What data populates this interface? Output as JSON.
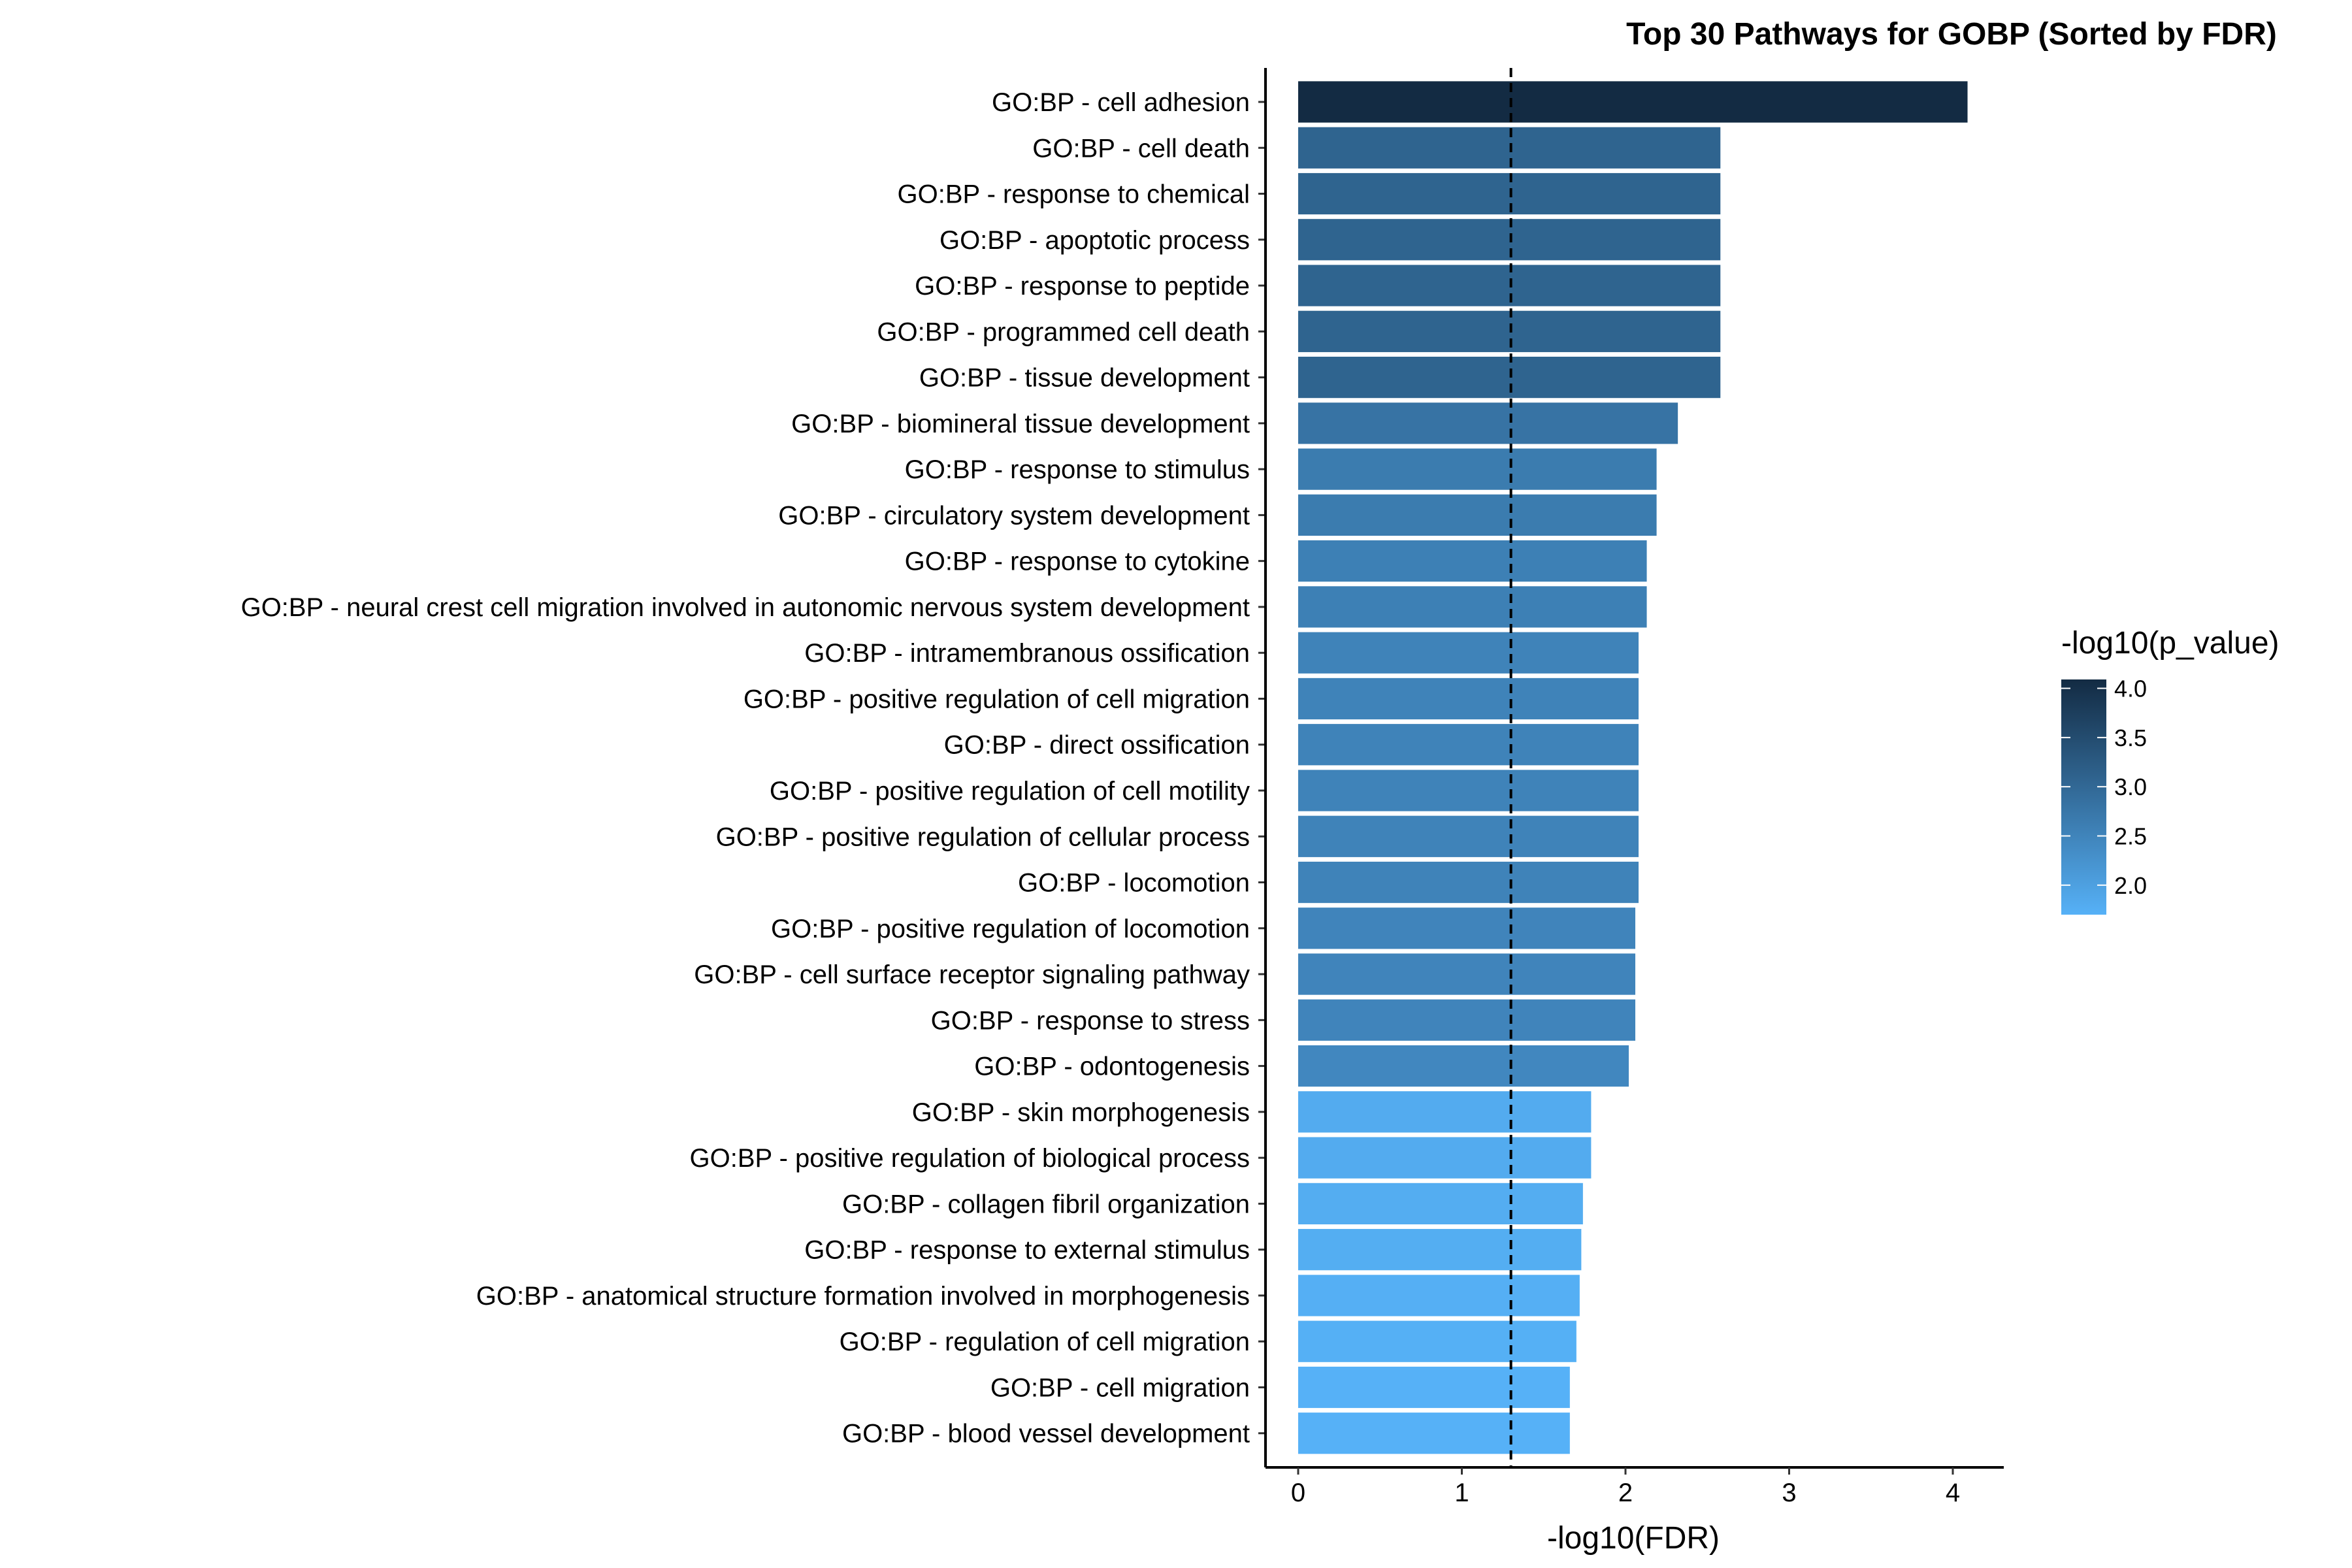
{
  "chart_data": {
    "type": "bar",
    "orientation": "horizontal",
    "title": "Top 30 Pathways for GOBP (Sorted by FDR)",
    "xlabel": "-log10(FDR)",
    "ylabel": "",
    "xlim": [
      -0.2,
      4.3
    ],
    "x_ticks": [
      0,
      1,
      2,
      3,
      4
    ],
    "reference_line": {
      "x": 1.3,
      "style": "dashed"
    },
    "grid": false,
    "categories": [
      "GO:BP - cell adhesion",
      "GO:BP - cell death",
      "GO:BP - response to chemical",
      "GO:BP - apoptotic process",
      "GO:BP - response to peptide",
      "GO:BP - programmed cell death",
      "GO:BP - tissue development",
      "GO:BP - biomineral tissue development",
      "GO:BP - response to stimulus",
      "GO:BP - circulatory system development",
      "GO:BP - response to cytokine",
      "GO:BP - neural crest cell migration involved in autonomic nervous system development",
      "GO:BP - intramembranous ossification",
      "GO:BP - positive regulation of cell migration",
      "GO:BP - direct ossification",
      "GO:BP - positive regulation of cell motility",
      "GO:BP - positive regulation of cellular process",
      "GO:BP - locomotion",
      "GO:BP - positive regulation of locomotion",
      "GO:BP - cell surface receptor signaling pathway",
      "GO:BP - response to stress",
      "GO:BP - odontogenesis",
      "GO:BP - skin morphogenesis",
      "GO:BP - positive regulation of biological process",
      "GO:BP - collagen fibril organization",
      "GO:BP - response to external stimulus",
      "GO:BP - anatomical structure formation involved in morphogenesis",
      "GO:BP - regulation of cell migration",
      "GO:BP - cell migration",
      "GO:BP - blood vessel development"
    ],
    "values": [
      4.09,
      2.58,
      2.58,
      2.58,
      2.58,
      2.58,
      2.58,
      2.32,
      2.19,
      2.19,
      2.13,
      2.13,
      2.08,
      2.08,
      2.08,
      2.08,
      2.08,
      2.08,
      2.06,
      2.06,
      2.06,
      2.02,
      1.79,
      1.79,
      1.74,
      1.73,
      1.72,
      1.7,
      1.66,
      1.66
    ],
    "color_values": [
      4.09,
      3.08,
      3.08,
      3.08,
      3.08,
      3.08,
      3.08,
      2.8,
      2.65,
      2.65,
      2.58,
      2.58,
      2.52,
      2.52,
      2.52,
      2.52,
      2.52,
      2.52,
      2.5,
      2.5,
      2.5,
      2.45,
      1.8,
      1.8,
      1.78,
      1.76,
      1.74,
      1.72,
      1.7,
      1.7
    ],
    "colorbar": {
      "title": "-log10(p_value)",
      "min": 1.7,
      "max": 4.09,
      "ticks": [
        2.0,
        2.5,
        3.0,
        3.5,
        4.0
      ],
      "tick_labels": [
        "2.0",
        "2.5",
        "3.0",
        "3.5",
        "4.0"
      ],
      "color_low": "#56B1F7",
      "color_high": "#132B43"
    },
    "legend_position": "right"
  }
}
